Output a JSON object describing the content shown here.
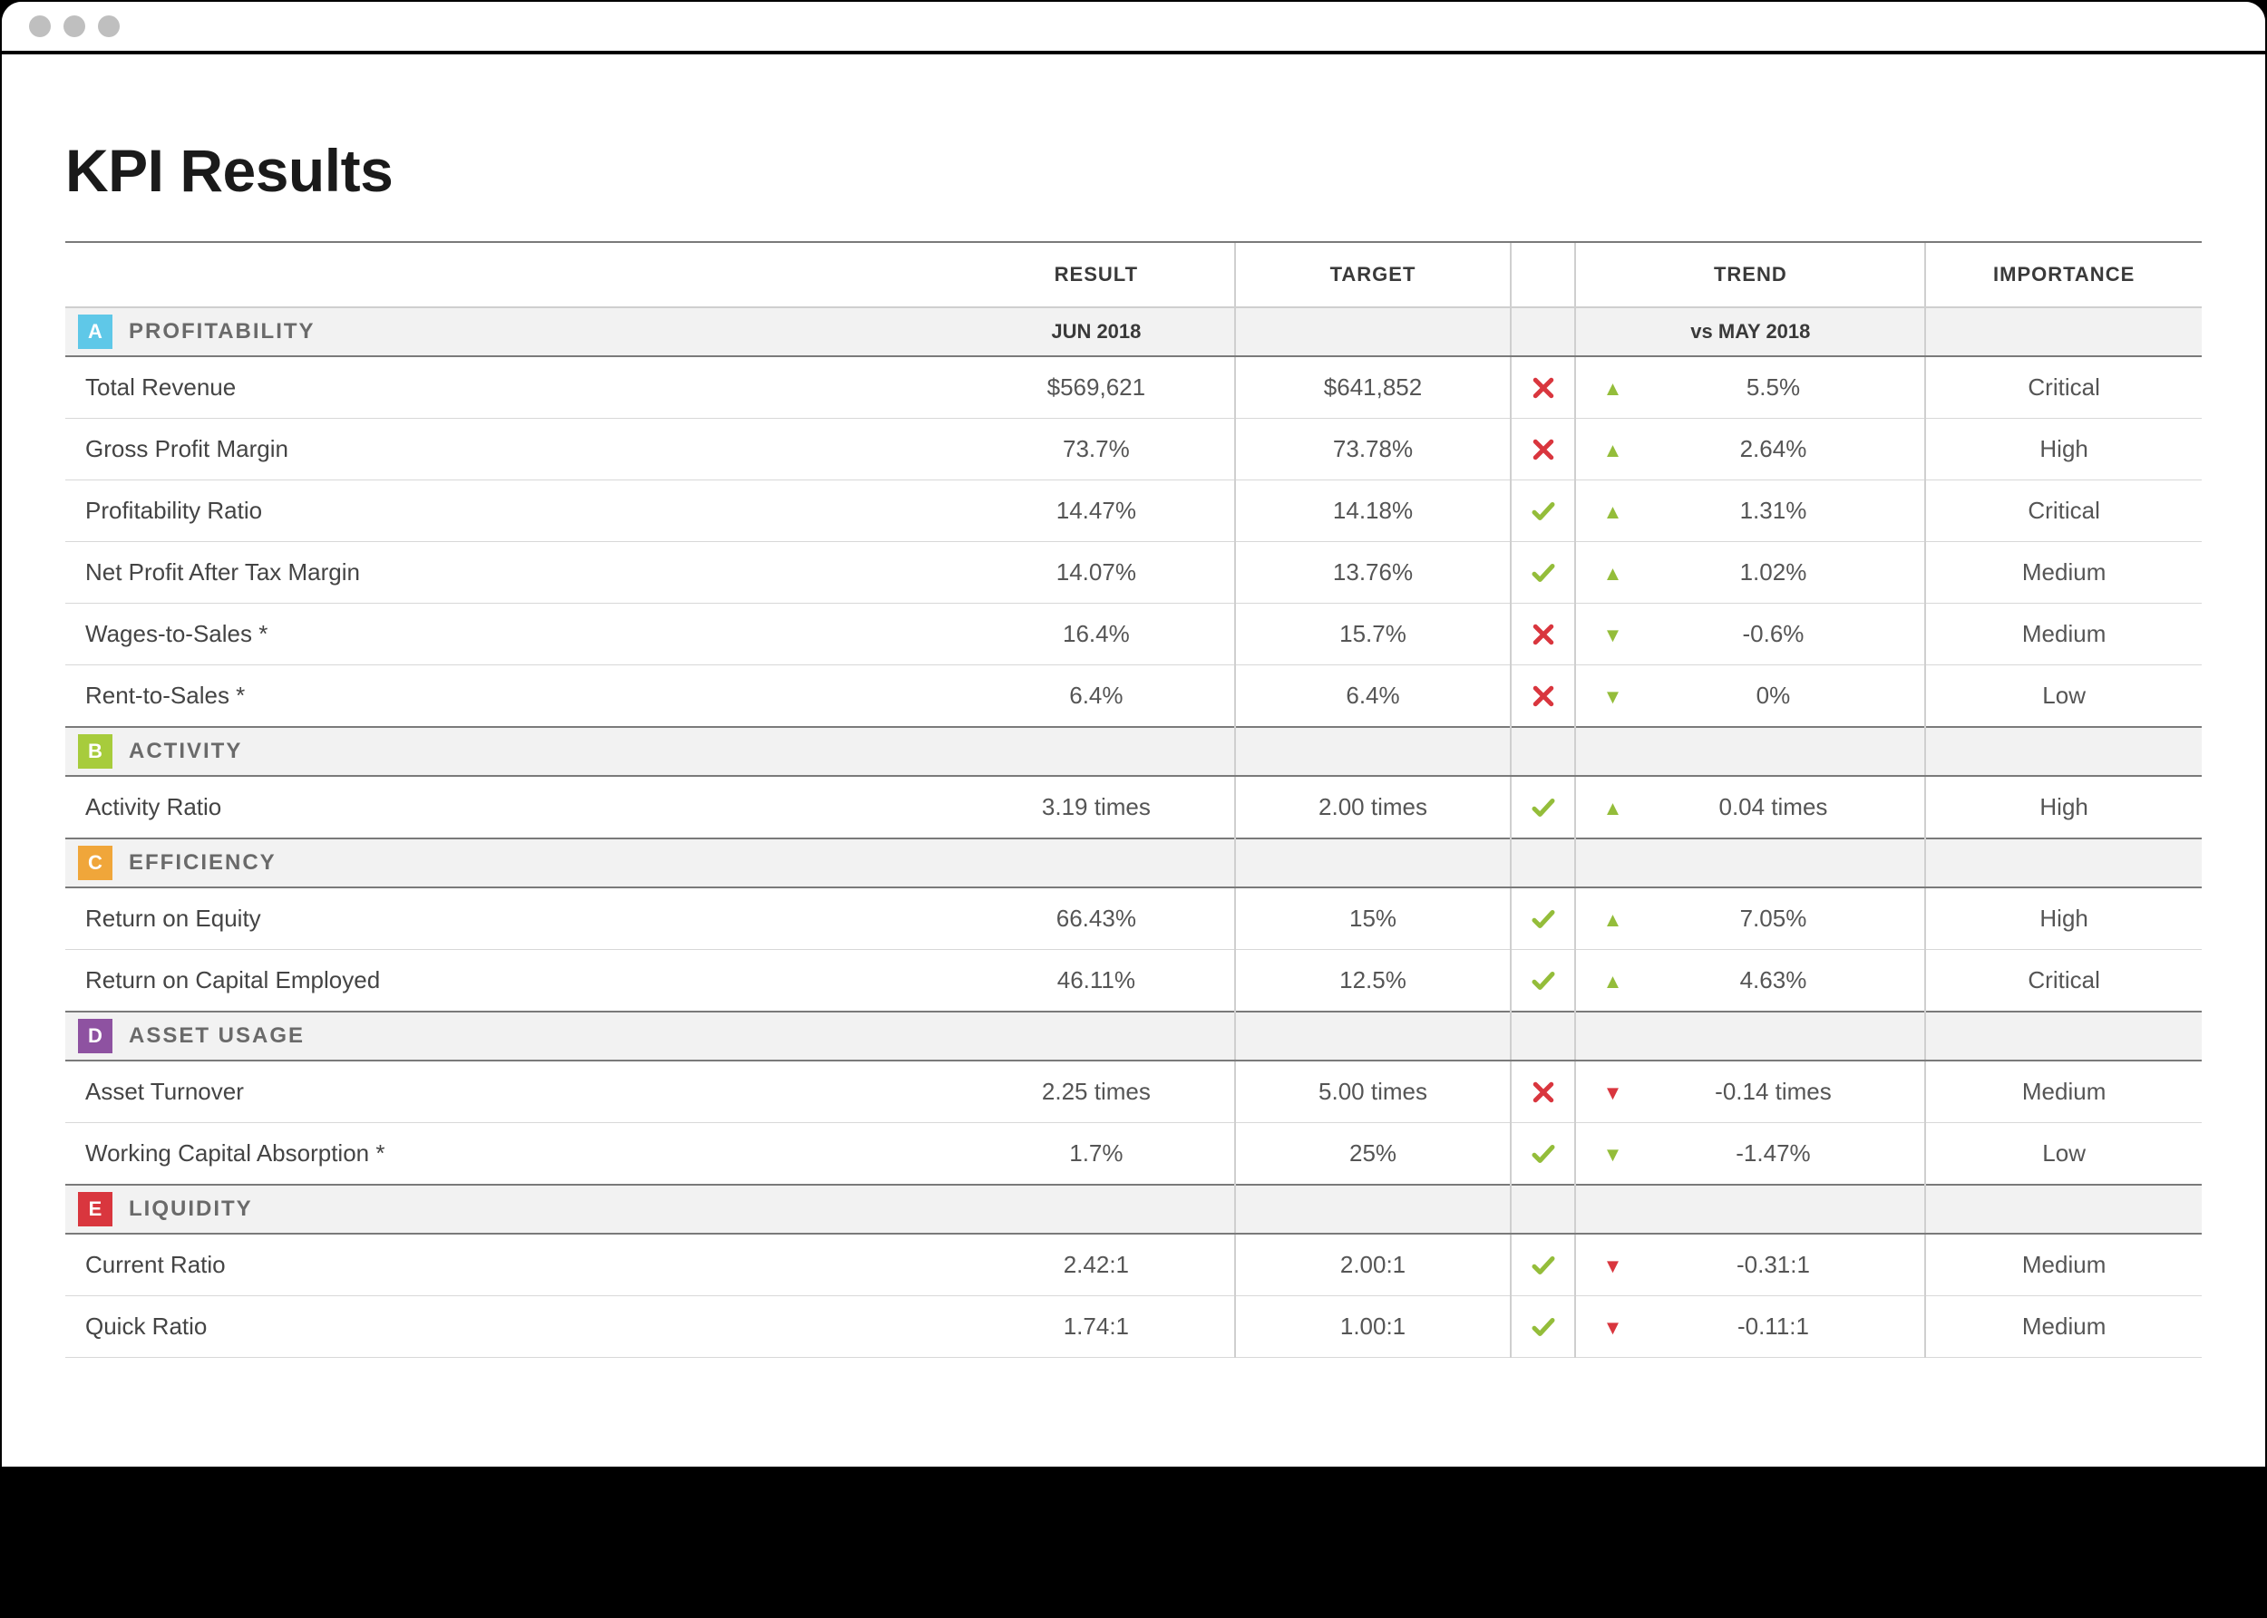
{
  "page": {
    "title": "KPI Results"
  },
  "colors": {
    "pass": "#94bd3a",
    "fail": "#d9363e",
    "section_bg": "#f2f2f2",
    "header_border": "#7a7a7a",
    "row_border": "#d8d8d8",
    "badge_A": "#5fc8e8",
    "badge_B": "#a7cc3c",
    "badge_C": "#f0a63a",
    "badge_D": "#8e52a1",
    "badge_E": "#d9363e"
  },
  "columns": {
    "name": "",
    "result": "RESULT",
    "target": "TARGET",
    "trend": "TREND",
    "importance": "IMPORTANCE"
  },
  "sections": [
    {
      "badge": "A",
      "badge_color": "#5fc8e8",
      "title": "PROFITABILITY",
      "result_header": "JUN 2018",
      "trend_header": "vs MAY 2018",
      "rows": [
        {
          "name": "Total Revenue",
          "result": "$569,621",
          "target": "$641,852",
          "status": "fail",
          "trend_dir": "up-pos",
          "trend": "5.5%",
          "importance": "Critical"
        },
        {
          "name": "Gross Profit Margin",
          "result": "73.7%",
          "target": "73.78%",
          "status": "fail",
          "trend_dir": "up-pos",
          "trend": "2.64%",
          "importance": "High"
        },
        {
          "name": "Profitability Ratio",
          "result": "14.47%",
          "target": "14.18%",
          "status": "pass",
          "trend_dir": "up-pos",
          "trend": "1.31%",
          "importance": "Critical"
        },
        {
          "name": "Net Profit After Tax Margin",
          "result": "14.07%",
          "target": "13.76%",
          "status": "pass",
          "trend_dir": "up-pos",
          "trend": "1.02%",
          "importance": "Medium"
        },
        {
          "name": "Wages-to-Sales *",
          "result": "16.4%",
          "target": "15.7%",
          "status": "fail",
          "trend_dir": "down-pos",
          "trend": "-0.6%",
          "importance": "Medium"
        },
        {
          "name": "Rent-to-Sales *",
          "result": "6.4%",
          "target": "6.4%",
          "status": "fail",
          "trend_dir": "down-pos",
          "trend": "0%",
          "importance": "Low"
        }
      ]
    },
    {
      "badge": "B",
      "badge_color": "#a7cc3c",
      "title": "ACTIVITY",
      "result_header": "",
      "trend_header": "",
      "rows": [
        {
          "name": "Activity Ratio",
          "result": "3.19 times",
          "target": "2.00 times",
          "status": "pass",
          "trend_dir": "up-pos",
          "trend": "0.04 times",
          "importance": "High"
        }
      ]
    },
    {
      "badge": "C",
      "badge_color": "#f0a63a",
      "title": "EFFICIENCY",
      "result_header": "",
      "trend_header": "",
      "rows": [
        {
          "name": "Return on Equity",
          "result": "66.43%",
          "target": "15%",
          "status": "pass",
          "trend_dir": "up-pos",
          "trend": "7.05%",
          "importance": "High"
        },
        {
          "name": "Return on Capital Employed",
          "result": "46.11%",
          "target": "12.5%",
          "status": "pass",
          "trend_dir": "up-pos",
          "trend": "4.63%",
          "importance": "Critical"
        }
      ]
    },
    {
      "badge": "D",
      "badge_color": "#8e52a1",
      "title": "ASSET USAGE",
      "result_header": "",
      "trend_header": "",
      "rows": [
        {
          "name": "Asset Turnover",
          "result": "2.25 times",
          "target": "5.00 times",
          "status": "fail",
          "trend_dir": "down-neg",
          "trend": "-0.14 times",
          "importance": "Medium"
        },
        {
          "name": "Working Capital Absorption *",
          "result": "1.7%",
          "target": "25%",
          "status": "pass",
          "trend_dir": "down-pos",
          "trend": "-1.47%",
          "importance": "Low"
        }
      ]
    },
    {
      "badge": "E",
      "badge_color": "#d9363e",
      "title": "LIQUIDITY",
      "result_header": "",
      "trend_header": "",
      "rows": [
        {
          "name": "Current Ratio",
          "result": "2.42:1",
          "target": "2.00:1",
          "status": "pass",
          "trend_dir": "down-neg",
          "trend": "-0.31:1",
          "importance": "Medium"
        },
        {
          "name": "Quick Ratio",
          "result": "1.74:1",
          "target": "1.00:1",
          "status": "pass",
          "trend_dir": "down-neg",
          "trend": "-0.11:1",
          "importance": "Medium"
        }
      ]
    }
  ]
}
